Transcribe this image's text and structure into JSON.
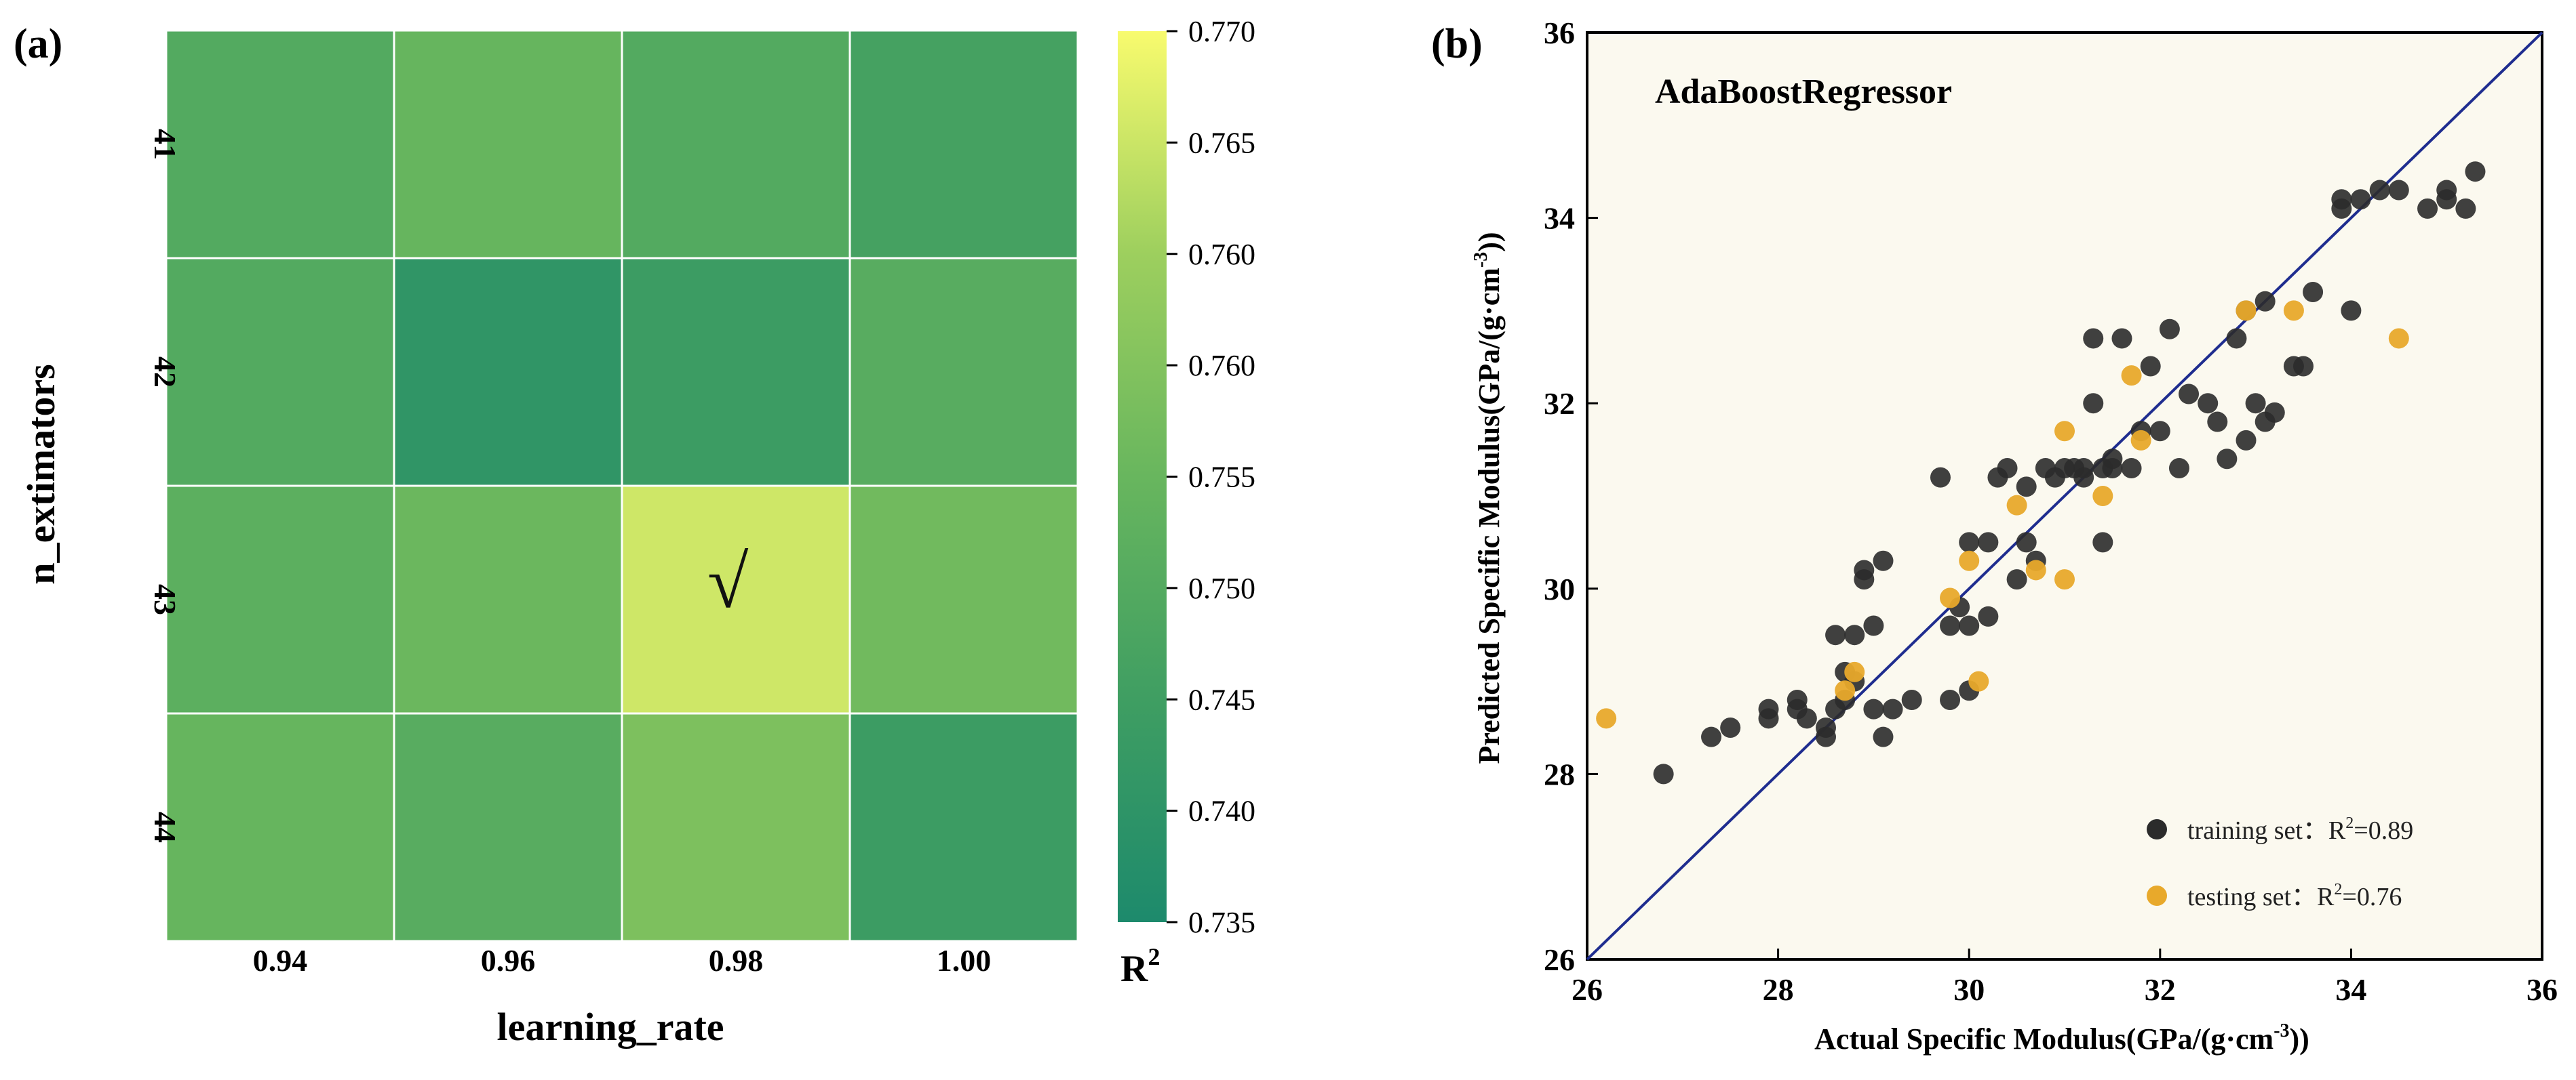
{
  "panel_a": {
    "label": "(a)",
    "check_mark": "√",
    "colorbar": {
      "title": "R",
      "title_sup": "2",
      "colors": [
        "#1d8a6c",
        "#3f9e62",
        "#68b65e",
        "#9dcf5e",
        "#f8fb6e"
      ],
      "ticks": [
        "0.770",
        "0.765",
        "0.760",
        "0.760",
        "0.755",
        "0.750",
        "0.745",
        "0.740",
        "0.735"
      ]
    }
  },
  "panel_b": {
    "label": "(b)",
    "title": "AdaBoostRegressor",
    "ylabel_main": "Predicted Specific Modulus(GPa/(g·cm",
    "ylabel_sup": "-3",
    "ylabel_end": "))",
    "xlabel_main": "Actual Specific Modulus(GPa/(g·cm",
    "xlabel_sup": "-3",
    "xlabel_end": "))",
    "legend": [
      {
        "text": "training set：R",
        "sup": "2",
        "tail": "=0.89",
        "color": "#2b2b2b"
      },
      {
        "text": "testing set：R",
        "sup": "2",
        "tail": "=0.76",
        "color": "#e8a92b"
      }
    ],
    "plot_bg": "#fbf9ef",
    "diag_color": "#1f2d8f"
  },
  "chart_data": [
    {
      "type": "heatmap",
      "xlabel": "learning_rate",
      "ylabel": "n_extimators",
      "x_categories": [
        "0.94",
        "0.96",
        "0.98",
        "1.00"
      ],
      "y_categories": [
        "41",
        "42",
        "43",
        "44"
      ],
      "values": [
        [
          0.748,
          0.752,
          0.748,
          0.745
        ],
        [
          0.748,
          0.74,
          0.743,
          0.749
        ],
        [
          0.75,
          0.753,
          0.766,
          0.754
        ],
        [
          0.752,
          0.749,
          0.756,
          0.743
        ]
      ],
      "colorbar_label": "R²",
      "vmin": 0.735,
      "vmax": 0.77,
      "best": {
        "x": "0.98",
        "y": "43"
      }
    },
    {
      "type": "scatter",
      "title": "AdaBoostRegressor",
      "xlabel": "Actual Specific Modulus(GPa/(g·cm⁻³))",
      "ylabel": "Predicted Specific Modulus(GPa/(g·cm⁻³))",
      "xlim": [
        26,
        36
      ],
      "ylim": [
        26,
        36
      ],
      "xticks": [
        "26",
        "28",
        "30",
        "32",
        "34",
        "36"
      ],
      "yticks": [
        "26",
        "28",
        "30",
        "32",
        "34",
        "36"
      ],
      "reference_line": "y = x",
      "series": [
        {
          "name": "training set：R²=0.89",
          "points": [
            [
              26.8,
              28.0
            ],
            [
              27.3,
              28.4
            ],
            [
              27.5,
              28.5
            ],
            [
              27.9,
              28.7
            ],
            [
              27.9,
              28.6
            ],
            [
              28.2,
              28.8
            ],
            [
              28.2,
              28.7
            ],
            [
              28.3,
              28.6
            ],
            [
              28.5,
              28.4
            ],
            [
              28.5,
              28.5
            ],
            [
              28.6,
              28.7
            ],
            [
              28.6,
              29.5
            ],
            [
              28.7,
              28.8
            ],
            [
              28.7,
              29.1
            ],
            [
              28.8,
              29.0
            ],
            [
              28.8,
              29.5
            ],
            [
              28.9,
              30.1
            ],
            [
              28.9,
              30.2
            ],
            [
              29.0,
              28.7
            ],
            [
              29.0,
              29.6
            ],
            [
              29.1,
              28.4
            ],
            [
              29.1,
              30.3
            ],
            [
              29.2,
              28.7
            ],
            [
              29.4,
              28.8
            ],
            [
              29.7,
              31.2
            ],
            [
              29.8,
              29.6
            ],
            [
              29.8,
              28.8
            ],
            [
              29.9,
              29.8
            ],
            [
              30.0,
              28.9
            ],
            [
              30.0,
              30.5
            ],
            [
              30.0,
              29.6
            ],
            [
              30.2,
              29.7
            ],
            [
              30.2,
              30.5
            ],
            [
              30.3,
              31.2
            ],
            [
              30.4,
              31.3
            ],
            [
              30.5,
              30.1
            ],
            [
              30.6,
              30.5
            ],
            [
              30.6,
              31.1
            ],
            [
              30.7,
              30.3
            ],
            [
              30.8,
              31.3
            ],
            [
              31.1,
              31.3
            ],
            [
              31.2,
              31.2
            ],
            [
              31.3,
              32.7
            ],
            [
              31.3,
              32.0
            ],
            [
              31.4,
              31.3
            ],
            [
              31.4,
              30.5
            ],
            [
              31.5,
              31.4
            ],
            [
              31.6,
              32.7
            ],
            [
              31.7,
              31.3
            ],
            [
              31.8,
              31.7
            ],
            [
              31.9,
              32.4
            ],
            [
              32.0,
              31.7
            ],
            [
              32.1,
              32.8
            ],
            [
              32.2,
              31.3
            ],
            [
              32.3,
              32.1
            ],
            [
              32.5,
              32.0
            ],
            [
              32.6,
              31.8
            ],
            [
              32.7,
              31.4
            ],
            [
              32.8,
              32.7
            ],
            [
              32.9,
              33.0
            ],
            [
              32.9,
              31.6
            ],
            [
              33.0,
              32.0
            ],
            [
              33.1,
              31.8
            ],
            [
              33.1,
              33.1
            ],
            [
              33.2,
              31.9
            ],
            [
              33.4,
              32.4
            ],
            [
              33.5,
              32.4
            ],
            [
              33.6,
              33.2
            ],
            [
              34.0,
              33.0
            ],
            [
              33.9,
              34.1
            ],
            [
              33.9,
              34.2
            ],
            [
              34.1,
              34.2
            ],
            [
              34.3,
              34.3
            ],
            [
              34.5,
              34.3
            ],
            [
              34.8,
              34.1
            ],
            [
              35.0,
              34.3
            ],
            [
              35.0,
              34.2
            ],
            [
              35.2,
              34.1
            ],
            [
              35.3,
              34.5
            ],
            [
              31.0,
              31.3
            ],
            [
              30.9,
              31.2
            ],
            [
              31.5,
              31.3
            ],
            [
              31.2,
              31.3
            ]
          ]
        },
        {
          "name": "testing set：R²=0.76",
          "points": [
            [
              26.2,
              28.6
            ],
            [
              28.7,
              28.9
            ],
            [
              28.8,
              29.1
            ],
            [
              29.8,
              29.9
            ],
            [
              30.0,
              30.3
            ],
            [
              30.1,
              29.0
            ],
            [
              30.5,
              30.9
            ],
            [
              30.7,
              30.2
            ],
            [
              31.0,
              30.1
            ],
            [
              31.0,
              31.7
            ],
            [
              31.4,
              31.0
            ],
            [
              31.7,
              32.3
            ],
            [
              31.8,
              31.6
            ],
            [
              32.9,
              33.0
            ],
            [
              33.4,
              33.0
            ],
            [
              34.5,
              32.7
            ]
          ]
        }
      ]
    }
  ]
}
